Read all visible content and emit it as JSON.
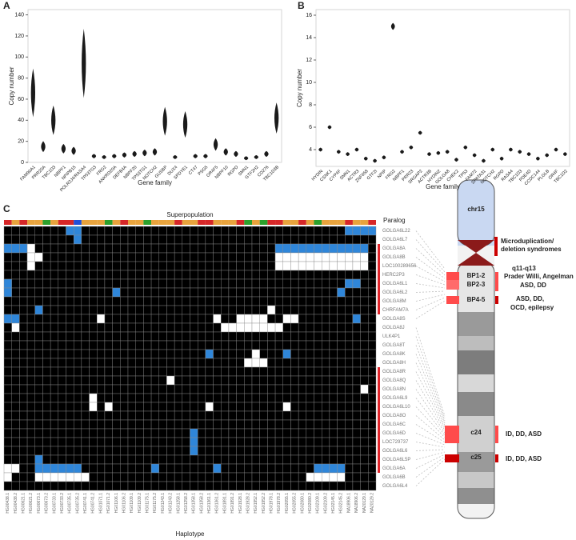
{
  "panels": [
    "A",
    "B",
    "C"
  ],
  "chart_data": [
    {
      "type": "violin",
      "xlabel": "Gene family",
      "ylabel": "Copy number",
      "color": "#1a1a1a",
      "categories": [
        "FAM90A1",
        "PRR20A",
        "TBC1D3",
        "NBPF1",
        "NPIPB15",
        "POLR2J4/RASA4",
        "TP53TG3",
        "FRG2",
        "ANKRD20A",
        "DEFB4A",
        "NBPF20",
        "TP53TG1",
        "NOTCH2",
        "GUSBP",
        "DUX4",
        "SPDYE1",
        "CT47",
        "PSG5",
        "OR4F5",
        "NBPF10",
        "RGPD",
        "SMN1",
        "GTF2H2",
        "CD276",
        "TBC1D3B"
      ],
      "values": [
        66,
        15,
        40,
        13,
        11,
        94,
        6,
        5,
        6,
        7,
        8,
        9,
        10,
        39,
        5,
        36,
        6,
        6,
        17,
        10,
        8,
        4,
        5,
        8,
        42
      ],
      "ylim": [
        0,
        145
      ],
      "yticks": [
        0,
        20,
        40,
        60,
        80,
        100,
        120,
        140
      ]
    },
    {
      "type": "violin",
      "xlabel": "Gene family",
      "ylabel": "Copy number",
      "color": "#1a1a1a",
      "categories": [
        "HYDIN",
        "CSNK1",
        "CYP4F",
        "SMN1",
        "ACTR3",
        "ZNF658",
        "GTF2I",
        "NPIP",
        "FRG2",
        "NBPF1",
        "PRR23",
        "SRGAP2",
        "ACTR3B",
        "HYDIN2",
        "GOLGA8",
        "CHEK2",
        "TP53",
        "FAM72",
        "SPATA31",
        "NOTCH2",
        "RGPD",
        "RASA4",
        "TBC1D3",
        "PDE4D",
        "CCDC144",
        "PLGLB",
        "OR4F",
        "TBC1D2"
      ],
      "values": [
        4,
        6,
        3.8,
        3.6,
        4,
        3.2,
        3,
        3.3,
        15,
        3.8,
        4.2,
        5.5,
        3.6,
        3.7,
        3.8,
        3.1,
        4.2,
        3.5,
        3,
        4,
        3.2,
        4,
        3.8,
        3.6,
        3.2,
        3.5,
        4,
        3.6
      ],
      "ylim": [
        2.5,
        16.5
      ],
      "yticks": [
        4,
        6,
        8,
        10,
        12,
        14,
        16
      ]
    },
    {
      "type": "heatmap",
      "superpopulation_label": "Superpopulation",
      "paralog_label": "Paralog",
      "xlabel": "Haplotype",
      "cell_colors": [
        "#000000",
        "#2f86d9",
        "#ffffff"
      ],
      "superpopulation_colors": [
        "#e8a33d",
        "#d62728",
        "#2ca02c",
        "#1f4fd8",
        "#9467bd"
      ],
      "superpopulation": "101002011300020100200010011000120211001020001001",
      "paralog_color": "#e0252a",
      "paralog": "001111111100000011111111111100",
      "rows": [
        "GOLGA6L22",
        "GOLGA6L7",
        "GOLGA8A",
        "GOLGA8B",
        "LOC100289656",
        "HERC2P3",
        "GOLGA6L1",
        "GOLGA6L2",
        "GOLGA8M",
        "CHRFAM7A",
        "GOLGA8S",
        "GOLGA8J",
        "ULK4P1",
        "GOLGA8T",
        "GOLGA8K",
        "GOLGA8H",
        "GOLGA8R",
        "GOLGA8Q",
        "GOLGA8N",
        "GOLGA6L9",
        "GOLGA6L10",
        "GOLGA8O",
        "GOLGA6C",
        "GOLGA6D",
        "LOC729737",
        "GOLGA6L6",
        "GOLGA6L5P",
        "GOLGA6A",
        "GOLGA6B",
        "GOLGA6L4"
      ],
      "columns": [
        "HG00438.1",
        "HG00438.2",
        "HG00621.1",
        "HG00621.2",
        "HG00673.1",
        "HG00673.2",
        "HG00733.1",
        "HG00733.2",
        "HG00735.1",
        "HG00735.2",
        "HG00741.1",
        "HG00741.2",
        "HG01071.1",
        "HG01071.2",
        "HG01106.1",
        "HG01106.2",
        "HG01109.1",
        "HG01109.2",
        "HG01175.1",
        "HG01175.2",
        "HG01243.1",
        "HG01243.2",
        "HG01258.1",
        "HG01258.2",
        "HG01358.1",
        "HG01358.2",
        "HG01361.1",
        "HG01361.2",
        "HG01891.1",
        "HG01891.2",
        "HG01928.1",
        "HG01928.2",
        "HG01952.1",
        "HG01952.2",
        "HG01978.1",
        "HG01978.2",
        "HG02055.1",
        "HG02055.2",
        "HG02080.1",
        "HG02080.2",
        "HG02109.1",
        "HG02109.2",
        "HG02145.1",
        "HG02145.2",
        "NA18906.1",
        "NA18906.2",
        "NA20129.1",
        "NA20129.2"
      ],
      "values": [
        "000000001100000000000000000000000000000000001111",
        "000000000100000000000000000000000000000000000000",
        "111200000000000000000000000000000001111111111110",
        "000220000000000000000000000000000002222222222220",
        "000200000000000000000000000000000002222222222220",
        "000000000000000000000000000000000000000000000000",
        "100000000000000000000000000000000000000000001100",
        "100000000000001000000000000000000000000000010000",
        "000000000000000000000000000000000000000000000000",
        "000010000000000000000000000000000020000000000000",
        "110000000000200000000000000200222200220000000100",
        "020000000000000000000000000022222222000000000000",
        "000000000000000000000000000000000000000000000000",
        "000000000000000000000000000000000000000000000000",
        "000000000000000000000000001000002000100000000000",
        "000000000000000000000000000000022200000000000000",
        "000000000000000000000000000000000000000000000000",
        "000000000000000000000200000000000000000000000000",
        "000000000000000000000000000000000000000000000020",
        "000000000002000000000000000000000000000000000000",
        "000000000002020000000000002000000000200000000000",
        "000000000000000000000000000000000000000000000000",
        "000000000000000000000000000000000000000000000000",
        "000000000000000000000000100000000000000000000000",
        "000000000000000000000000100000000000000000000000",
        "000000000000000000000000100000000000000000000000",
        "000010000000000000000000000000000000000000000000",
        "220011111100000000010000000100000000000011110000",
        "200022222220000000000000000000000000000222220000",
        "000000000000000000000000000000000000000000000000"
      ]
    }
  ],
  "ideogram": {
    "chromosome": "chr15",
    "syndromes": [
      "Microduplication/",
      "deletion syndromes"
    ],
    "region": "q11-q13",
    "bp12": "BP1-2",
    "bp23": "BP2-3",
    "bp45": "BP4-5",
    "c24": "c24",
    "c25": "c25",
    "pwa": "Prader Willi, Angelman",
    "bp23_disease": "ASD, DD",
    "bp45_disease": [
      "ASD, DD,",
      "OCD, epilepsy"
    ],
    "c24_disease": "ID, DD, ASD",
    "c25_disease": "ID, DD, ASD"
  }
}
